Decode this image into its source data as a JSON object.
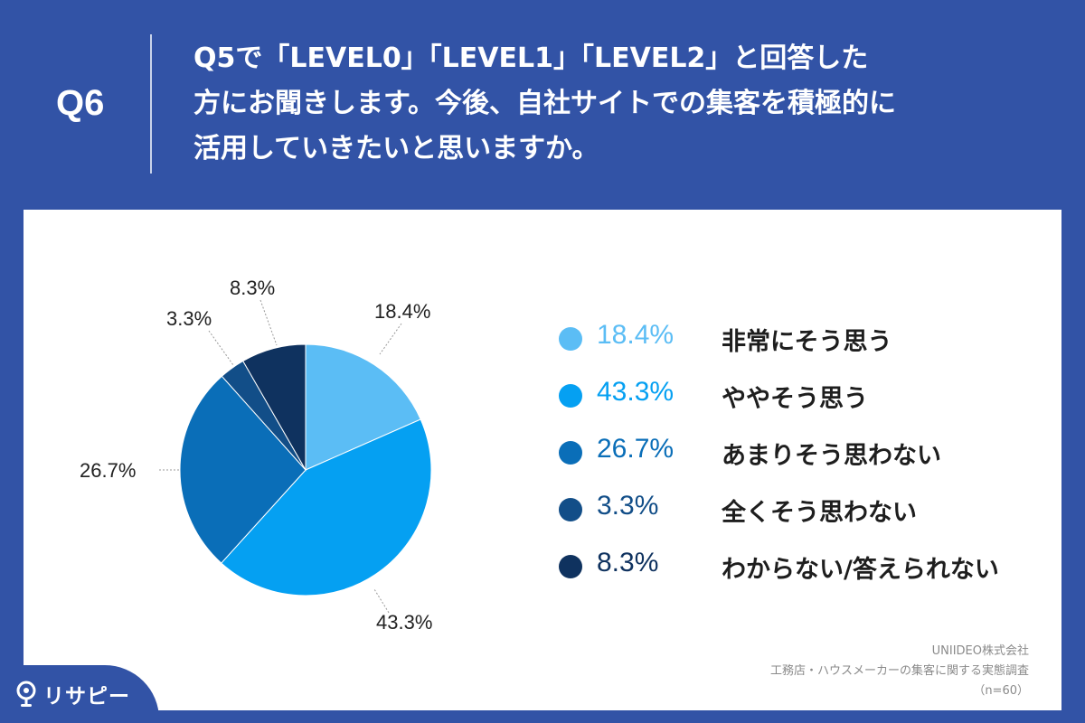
{
  "header": {
    "question_label": "Q6",
    "question_lines": [
      "Q5で「LEVEL0」「LEVEL1」「LEVEL2」と回答した",
      "方にお聞きします。今後、自社サイトでの集客を積極的に",
      "活用していきたいと思いますか。"
    ]
  },
  "chart_data": {
    "type": "pie",
    "title": "",
    "slices": [
      {
        "label": "非常にそう思う",
        "value": 18.4,
        "display": "18.4%",
        "color": "#5bbdf5"
      },
      {
        "label": "ややそう思う",
        "value": 43.3,
        "display": "43.3%",
        "color": "#05a0f2"
      },
      {
        "label": "あまりそう思わない",
        "value": 26.7,
        "display": "26.7%",
        "color": "#0a6eb8"
      },
      {
        "label": "全くそう思わない",
        "value": 3.3,
        "display": "3.3%",
        "color": "#124e88"
      },
      {
        "label": "わからない/答えられない",
        "value": 8.3,
        "display": "8.3%",
        "color": "#0f325f"
      }
    ],
    "legend_placement": "right",
    "start_angle": "12 o'clock, clockwise"
  },
  "source": {
    "company": "UNIIDEO株式会社",
    "survey": "工務店・ハウスメーカーの集客に関する実態調査",
    "sample": "（n=60）"
  },
  "logo": {
    "text": "リサピー",
    "icon": "location-pin-icon",
    "color": "#ffffff"
  },
  "colors": {
    "background": "#3253a6",
    "panel": "#ffffff"
  }
}
